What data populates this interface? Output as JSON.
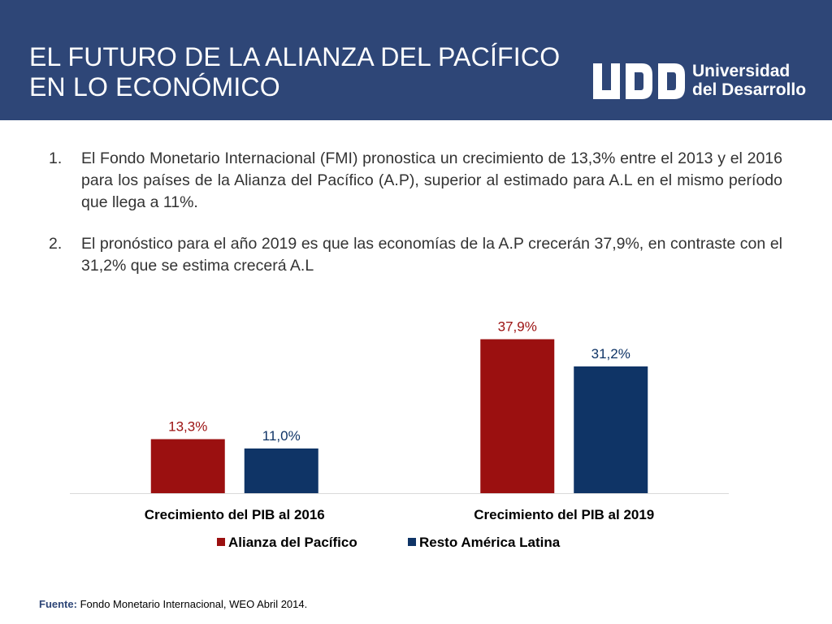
{
  "header": {
    "title_lines": [
      "EL FUTURO DE LA ALIANZA DEL PACÍFICO",
      "EN LO ECONÓMICO"
    ],
    "logo": {
      "icon": "udd-monogram-icon",
      "lines": [
        "Universidad",
        "del Desarrollo"
      ]
    }
  },
  "body": {
    "points": [
      {
        "number": "1.",
        "text": "El Fondo Monetario Internacional (FMI) pronostica un crecimiento de 13,3% entre el 2013 y el 2016 para los países de la Alianza del Pacífico (A.P), superior al estimado para A.L en el mismo período que llega a 11%."
      },
      {
        "number": "2.",
        "text": "El pronóstico para el año 2019 es que las economías de la A.P crecerán 37,9%, en contraste con el 31,2% que se estima crecerá A.L"
      }
    ]
  },
  "chart_data": {
    "type": "bar",
    "categories": [
      "Crecimiento del PIB al 2016",
      "Crecimiento del PIB al 2019"
    ],
    "series": [
      {
        "name": "Alianza del Pacífico",
        "values": [
          13.3,
          37.9
        ],
        "labels": [
          "13,3%",
          "37,9%"
        ],
        "color": "#9b1010"
      },
      {
        "name": "Resto América Latina",
        "values": [
          11.0,
          31.2
        ],
        "labels": [
          "11,0%",
          "31,2%"
        ],
        "color": "#0f3466"
      }
    ],
    "title": "",
    "xlabel": "",
    "ylabel": "",
    "ylim": [
      0,
      40
    ],
    "grid": false,
    "legend": "bottom"
  },
  "footer": {
    "source_label": "Fuente:",
    "source_text": "Fondo Monetario Internacional, WEO Abril 2014."
  }
}
